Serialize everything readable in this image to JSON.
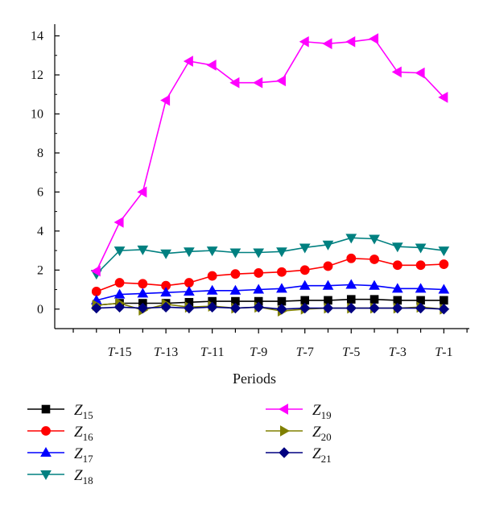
{
  "chart_data": {
    "type": "line",
    "xlabel": "Periods",
    "ylabel": "",
    "ylim": [
      -1,
      14.6
    ],
    "grid": false,
    "legend_placement": "bottom",
    "x": [
      -16,
      -15,
      -14,
      -13,
      -12,
      -11,
      -10,
      -9,
      -8,
      -7,
      -6,
      -5,
      -4,
      -3,
      -2,
      -1
    ],
    "xticks": [
      {
        "x": -15,
        "label": "-15"
      },
      {
        "x": -13,
        "label": "-13"
      },
      {
        "x": -11,
        "label": "-11"
      },
      {
        "x": -9,
        "label": "-9"
      },
      {
        "x": -7,
        "label": "-7"
      },
      {
        "x": -5,
        "label": "-5"
      },
      {
        "x": -3,
        "label": "-3"
      },
      {
        "x": -1,
        "label": "-1"
      }
    ],
    "xtick_prefix": "T",
    "yticks": [
      0,
      2,
      4,
      6,
      8,
      10,
      12,
      14
    ],
    "series": [
      {
        "name": "15",
        "color": "#000000",
        "marker": "square",
        "values": [
          0.2,
          0.3,
          0.3,
          0.3,
          0.35,
          0.4,
          0.4,
          0.4,
          0.4,
          0.45,
          0.45,
          0.5,
          0.5,
          0.45,
          0.45,
          0.45
        ]
      },
      {
        "name": "16",
        "color": "#ff0000",
        "marker": "circle",
        "values": [
          0.9,
          1.35,
          1.3,
          1.2,
          1.35,
          1.7,
          1.8,
          1.85,
          1.9,
          2.0,
          2.2,
          2.6,
          2.55,
          2.25,
          2.25,
          2.3
        ]
      },
      {
        "name": "17",
        "color": "#0000ff",
        "marker": "triangle-up",
        "values": [
          0.45,
          0.75,
          0.8,
          0.85,
          0.9,
          0.95,
          0.95,
          1.0,
          1.05,
          1.2,
          1.2,
          1.25,
          1.2,
          1.05,
          1.05,
          1.0
        ]
      },
      {
        "name": "18",
        "color": "#008080",
        "marker": "triangle-down",
        "values": [
          1.8,
          3.0,
          3.05,
          2.85,
          2.95,
          3.0,
          2.9,
          2.9,
          2.95,
          3.15,
          3.3,
          3.65,
          3.6,
          3.2,
          3.15,
          3.0
        ]
      },
      {
        "name": "19",
        "color": "#ff00ff",
        "marker": "triangle-left",
        "values": [
          1.95,
          4.45,
          6.0,
          10.7,
          12.7,
          12.5,
          11.6,
          11.6,
          11.7,
          13.7,
          13.6,
          13.7,
          13.85,
          12.15,
          12.1,
          10.85
        ]
      },
      {
        "name": "20",
        "color": "#808000",
        "marker": "triangle-right",
        "values": [
          0.2,
          0.3,
          -0.05,
          0.25,
          0.1,
          0.15,
          0.05,
          0.1,
          -0.1,
          0.0,
          0.05,
          0.05,
          0.05,
          0.05,
          0.1,
          0.0
        ]
      },
      {
        "name": "21",
        "color": "#000080",
        "marker": "diamond",
        "values": [
          0.05,
          0.1,
          0.05,
          0.1,
          0.05,
          0.1,
          0.05,
          0.1,
          0.0,
          0.05,
          0.05,
          0.05,
          0.05,
          0.05,
          0.05,
          0.0
        ]
      }
    ],
    "legend_prefix": "Z"
  }
}
